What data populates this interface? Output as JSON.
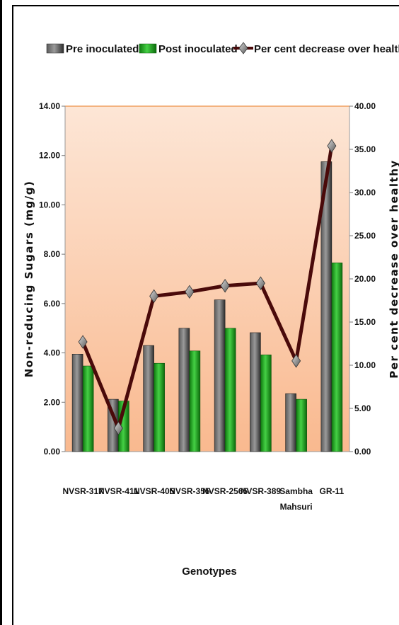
{
  "chart_data": {
    "type": "bar",
    "categories": [
      "NVSR-317",
      "NVSR-411",
      "NVSR-405",
      "NVSR-355",
      "NVSR-2565",
      "NVSR-389",
      "Sambha Mahsuri",
      "GR-11"
    ],
    "category_lines": [
      [
        "NVSR-317"
      ],
      [
        "NVSR-411"
      ],
      [
        "NVSR-405"
      ],
      [
        "NVSR-355"
      ],
      [
        "NVSR-2565"
      ],
      [
        "NVSR-389"
      ],
      [
        "Sambha",
        "Mahsuri"
      ],
      [
        "GR-11"
      ]
    ],
    "series": [
      {
        "name": "Pre inoculated",
        "type": "bar",
        "axis": "left",
        "color": "#3a3a3a",
        "values": [
          3.95,
          2.12,
          4.3,
          5.0,
          6.15,
          4.82,
          2.35,
          11.75
        ]
      },
      {
        "name": "Post inoculated",
        "type": "bar",
        "axis": "left",
        "color": "#1f9e1f",
        "values": [
          3.47,
          2.05,
          3.58,
          4.08,
          5.0,
          3.92,
          2.12,
          7.65
        ]
      },
      {
        "name": "Per cent decrease over healthy",
        "type": "line",
        "axis": "right",
        "color": "#4a0a0a",
        "values": [
          12.7,
          2.7,
          18.0,
          18.5,
          19.2,
          19.5,
          10.5,
          35.4
        ]
      }
    ],
    "xlabel": "Genotypes",
    "ylabel": "Non-reducing Sugars (mg/g)",
    "y2label": "Per cent decrease over healthy",
    "ylim": [
      0,
      14
    ],
    "y2lim": [
      0,
      40
    ],
    "yticks": [
      "0.00",
      "2.00",
      "4.00",
      "6.00",
      "8.00",
      "10.00",
      "12.00",
      "14.00"
    ],
    "y2ticks": [
      "0.00",
      "5.00",
      "10.00",
      "15.00",
      "20.00",
      "25.00",
      "30.00",
      "35.00",
      "40.00"
    ],
    "legend_position": "top",
    "grid": false
  }
}
